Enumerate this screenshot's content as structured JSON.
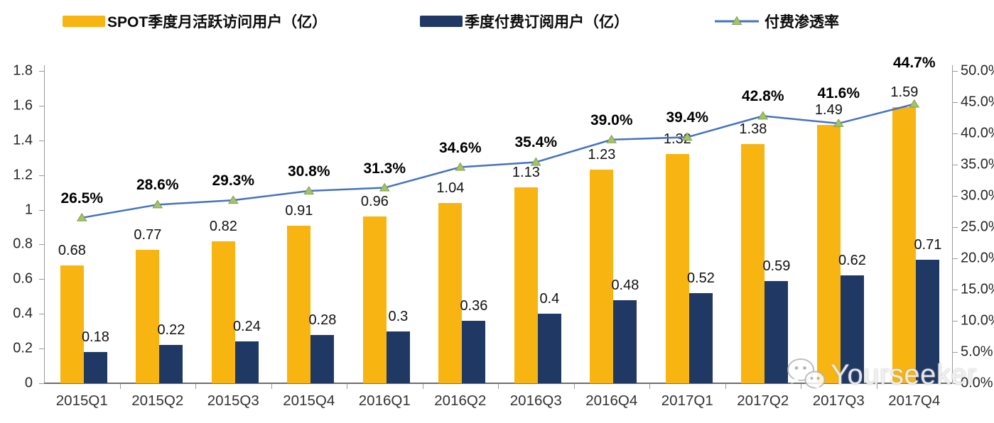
{
  "chart_data": {
    "type": "combo",
    "title": "",
    "legend_position": "top",
    "grid": false,
    "categories": [
      "2015Q1",
      "2015Q2",
      "2015Q3",
      "2015Q4",
      "2016Q1",
      "2016Q2",
      "2016Q3",
      "2016Q4",
      "2017Q1",
      "2017Q2",
      "2017Q3",
      "2017Q4"
    ],
    "series": [
      {
        "name": "SPOT季度月活跃访问用户（亿）",
        "type": "bar",
        "axis": "left",
        "color": "#F8B411",
        "values": [
          0.68,
          0.77,
          0.82,
          0.91,
          0.96,
          1.04,
          1.13,
          1.23,
          1.32,
          1.38,
          1.49,
          1.59
        ],
        "labels": [
          "0.68",
          "0.77",
          "0.82",
          "0.91",
          "0.96",
          "1.04",
          "1.13",
          "1.23",
          "1.32",
          "1.38",
          "1.49",
          "1.59"
        ]
      },
      {
        "name": "季度付费订阅用户（亿）",
        "type": "bar",
        "axis": "left",
        "color": "#1F3864",
        "values": [
          0.18,
          0.22,
          0.24,
          0.28,
          0.3,
          0.36,
          0.4,
          0.48,
          0.52,
          0.59,
          0.62,
          0.71
        ],
        "labels": [
          "0.18",
          "0.22",
          "0.24",
          "0.28",
          "0.3",
          "0.36",
          "0.4",
          "0.48",
          "0.52",
          "0.59",
          "0.62",
          "0.71"
        ]
      },
      {
        "name": "付费渗透率",
        "type": "line",
        "axis": "right",
        "color": "#4472C4",
        "marker": "triangle",
        "marker_color": "#A6C167",
        "marker_edge": "#7FA24C",
        "values": [
          26.5,
          28.6,
          29.3,
          30.8,
          31.3,
          34.6,
          35.4,
          39.0,
          39.4,
          42.8,
          41.6,
          44.7
        ],
        "labels": [
          "26.5%",
          "28.6%",
          "29.3%",
          "30.8%",
          "31.3%",
          "34.6%",
          "35.4%",
          "39.0%",
          "39.4%",
          "42.8%",
          "41.6%",
          "44.7%"
        ]
      }
    ],
    "left_axis": {
      "min": 0,
      "max": 1.8,
      "step": 0.2,
      "tick_labels": [
        "0",
        "0.2",
        "0.4",
        "0.6",
        "0.8",
        "1",
        "1.2",
        "1.4",
        "1.6",
        "1.8"
      ]
    },
    "right_axis": {
      "min": 0,
      "max": 50,
      "step": 5,
      "tick_labels": [
        "0.0%",
        "5.0%",
        "10.0%",
        "15.0%",
        "20.0%",
        "25.0%",
        "30.0%",
        "35.0%",
        "40.0%",
        "45.0%",
        "50.0%"
      ]
    }
  },
  "watermark": {
    "text": "Yourseeker"
  }
}
